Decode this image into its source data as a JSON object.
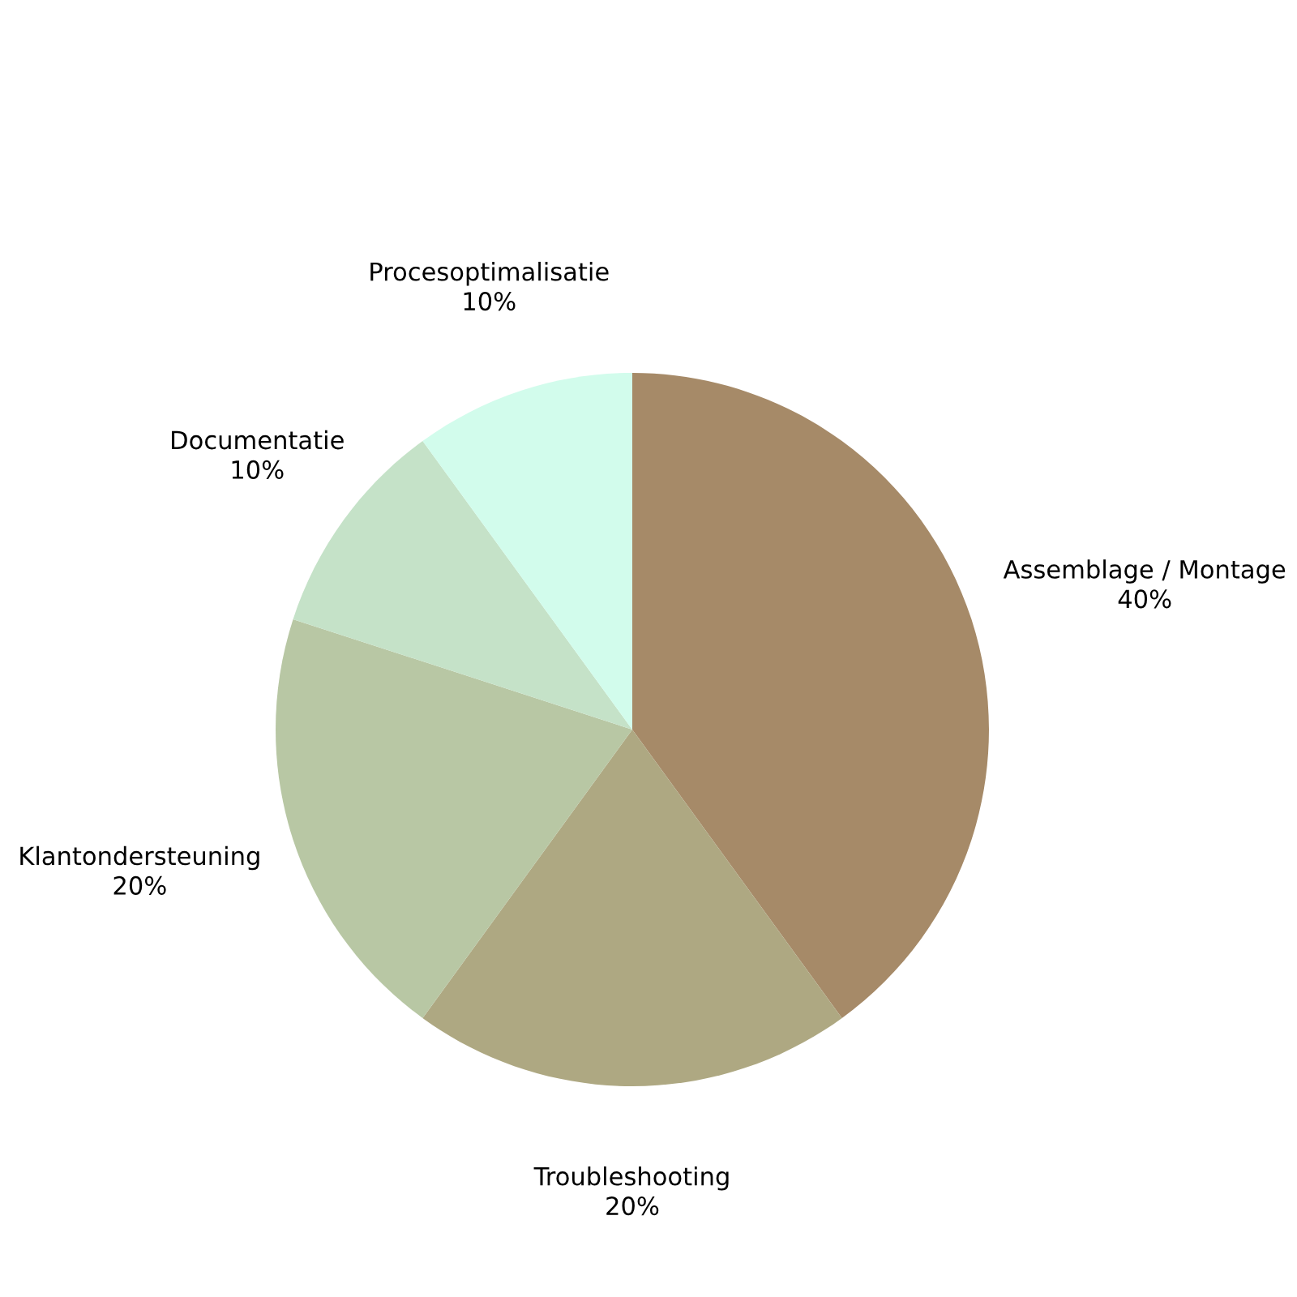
{
  "chart_data": {
    "type": "pie",
    "categories": [
      "Assemblage / Montage",
      "Troubleshooting",
      "Klantondersteuning",
      "Documentatie",
      "Procesoptimalisatie"
    ],
    "values": [
      40,
      20,
      20,
      10,
      10
    ],
    "value_labels": [
      "40%",
      "20%",
      "20%",
      "10%",
      "10%"
    ],
    "colors": [
      "#a68a68",
      "#aea882",
      "#b8c7a4",
      "#c5e2c8",
      "#d2fcec"
    ],
    "legend": false
  }
}
